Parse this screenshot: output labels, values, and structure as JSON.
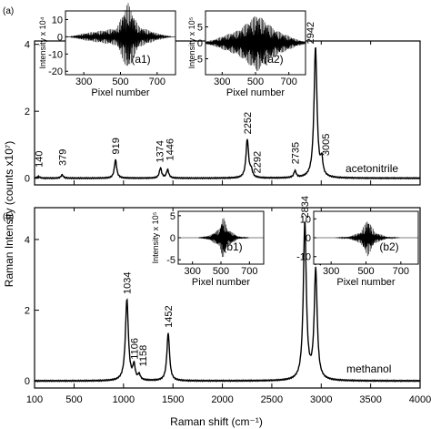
{
  "chart_data": [
    {
      "panel": "(a)",
      "type": "line",
      "sample": "acetonitrile",
      "xlabel": "Raman shift (cm⁻¹)",
      "ylabel": "Raman Intensity (counts x10⁷)",
      "xlim": [
        100,
        4000
      ],
      "ylim": [
        -0.2,
        4.1
      ],
      "x_ticks": [
        100,
        500,
        1000,
        1500,
        2000,
        2500,
        3000,
        3500,
        4000
      ],
      "y_ticks": [
        0,
        2,
        4
      ],
      "peaks": [
        {
          "x": 140,
          "y": 0.05,
          "label": "140"
        },
        {
          "x": 379,
          "y": 0.1,
          "label": "379"
        },
        {
          "x": 919,
          "y": 0.55,
          "label": "919"
        },
        {
          "x": 1374,
          "y": 0.3,
          "label": "1374"
        },
        {
          "x": 1446,
          "y": 0.25,
          "label": "1446"
        },
        {
          "x": 2252,
          "y": 1.15,
          "label": "2252"
        },
        {
          "x": 2292,
          "y": 0.2,
          "label": "2292"
        },
        {
          "x": 2735,
          "y": 0.2,
          "label": "2735"
        },
        {
          "x": 2942,
          "y": 3.9,
          "label": "2942"
        },
        {
          "x": 3005,
          "y": 0.45,
          "label": "3005"
        }
      ]
    },
    {
      "panel": "(b)",
      "type": "line",
      "sample": "methanol",
      "xlabel": "Raman shift (cm⁻¹)",
      "xlim": [
        100,
        4000
      ],
      "ylim": [
        -0.2,
        4.9
      ],
      "x_ticks": [
        100,
        500,
        1000,
        1500,
        2000,
        2500,
        3000,
        3500,
        4000
      ],
      "y_ticks": [
        0,
        2,
        4
      ],
      "peaks": [
        {
          "x": 1034,
          "y": 2.3,
          "label": "1034"
        },
        {
          "x": 1106,
          "y": 0.4,
          "label": "1106"
        },
        {
          "x": 1158,
          "y": 0.15,
          "label": "1158"
        },
        {
          "x": 1452,
          "y": 1.35,
          "label": "1452"
        },
        {
          "x": 2834,
          "y": 4.45,
          "label": "2834"
        },
        {
          "x": 2944,
          "y": 3.1,
          "label": "2944"
        }
      ]
    },
    {
      "panel": "(a1)",
      "type": "line",
      "xlabel": "Pixel number",
      "ylabel": "Intensity x 10⁴",
      "xlim": [
        200,
        800
      ],
      "ylim": [
        -22,
        15
      ],
      "x_ticks": [
        300,
        500,
        700
      ],
      "y_ticks": [
        10,
        0,
        -10,
        -20
      ],
      "center": 530,
      "envelope": [
        {
          "x": 300,
          "a": 2
        },
        {
          "x": 480,
          "a": 5
        },
        {
          "x": 520,
          "a": 15
        },
        {
          "x": 540,
          "a": 20
        },
        {
          "x": 600,
          "a": 6
        },
        {
          "x": 700,
          "a": 2
        }
      ]
    },
    {
      "panel": "(a2)",
      "type": "line",
      "xlabel": "Pixel number",
      "ylabel": "Intensity x 10⁵",
      "xlim": [
        200,
        800
      ],
      "ylim": [
        -10,
        10
      ],
      "x_ticks": [
        300,
        500,
        700
      ],
      "y_ticks": [
        5,
        0,
        -5
      ],
      "center": 510,
      "envelope": [
        {
          "x": 250,
          "a": 1
        },
        {
          "x": 400,
          "a": 4
        },
        {
          "x": 510,
          "a": 9
        },
        {
          "x": 620,
          "a": 4
        },
        {
          "x": 750,
          "a": 1
        }
      ]
    },
    {
      "panel": "(b1)",
      "type": "line",
      "xlabel": "Pixel number",
      "ylabel": "Intensity x 10⁵",
      "xlim": [
        200,
        800
      ],
      "ylim": [
        -6,
        6
      ],
      "x_ticks": [
        300,
        500,
        700
      ],
      "y_ticks": [
        5,
        0,
        -5
      ],
      "center": 515,
      "envelope": [
        {
          "x": 420,
          "a": 0.5
        },
        {
          "x": 490,
          "a": 2
        },
        {
          "x": 515,
          "a": 5
        },
        {
          "x": 545,
          "a": 2
        },
        {
          "x": 620,
          "a": 0.3
        }
      ]
    },
    {
      "panel": "(b2)",
      "type": "line",
      "xlabel": "Pixel number",
      "xlim": [
        200,
        800
      ],
      "ylim": [
        -14,
        14
      ],
      "x_ticks": [
        300,
        500,
        700
      ],
      "y_ticks": [
        10,
        0,
        -10
      ],
      "center": 510,
      "envelope": [
        {
          "x": 400,
          "a": 0.5
        },
        {
          "x": 470,
          "a": 3
        },
        {
          "x": 510,
          "a": 10
        },
        {
          "x": 550,
          "a": 3
        },
        {
          "x": 620,
          "a": 0.5
        }
      ]
    }
  ]
}
